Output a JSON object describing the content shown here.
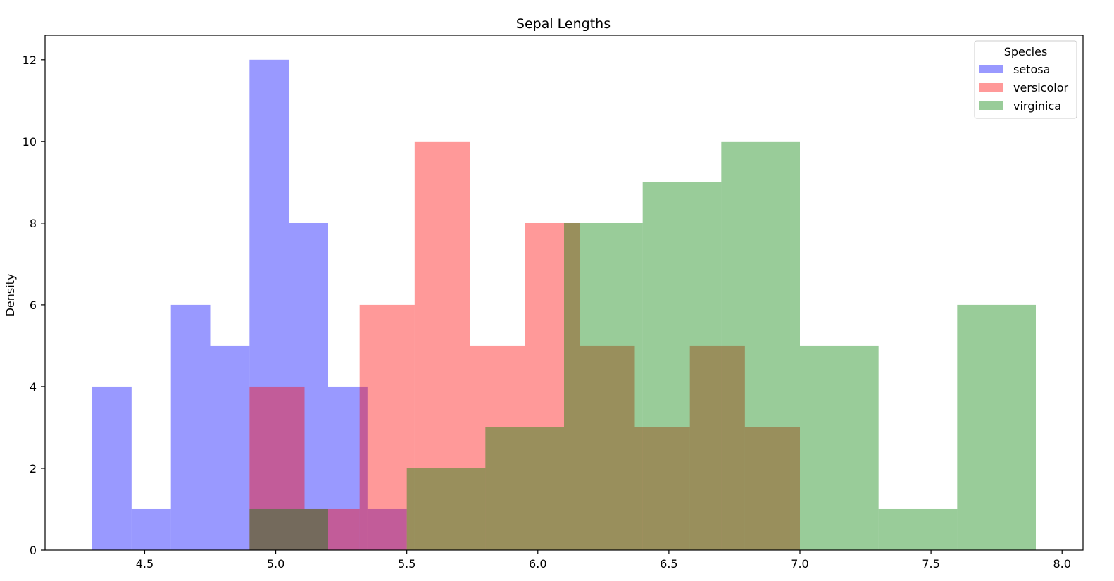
{
  "chart_data": {
    "type": "histogram",
    "title": "Sepal Lengths",
    "xlabel": "",
    "ylabel": "Density",
    "xlim": [
      4.12,
      8.08
    ],
    "ylim": [
      0,
      12.6
    ],
    "xticks": [
      4.5,
      5.0,
      5.5,
      6.0,
      6.5,
      7.0,
      7.5,
      8.0
    ],
    "xtick_labels": [
      "4.5",
      "5.0",
      "5.5",
      "6.0",
      "6.5",
      "7.0",
      "7.5",
      "8.0"
    ],
    "yticks": [
      0,
      2,
      4,
      6,
      8,
      10,
      12
    ],
    "ytick_labels": [
      "0",
      "2",
      "4",
      "6",
      "8",
      "10",
      "12"
    ],
    "grid": false,
    "legend": {
      "title": "Species",
      "position": "top-right"
    },
    "series": [
      {
        "name": "setosa",
        "color": "#0000ff",
        "opacity": 0.4,
        "bin_edges": [
          4.3,
          4.45,
          4.6,
          4.75,
          4.9,
          5.05,
          5.2,
          5.35,
          5.5,
          5.65,
          5.8
        ],
        "counts": [
          4,
          1,
          6,
          5,
          12,
          8,
          4,
          1,
          0,
          0
        ]
      },
      {
        "name": "versicolor",
        "color": "#ff0000",
        "opacity": 0.4,
        "bin_edges": [
          4.9,
          5.11,
          5.32,
          5.53,
          5.74,
          5.95,
          6.16,
          6.37,
          6.58,
          6.79,
          7.0
        ],
        "counts": [
          4,
          1,
          6,
          10,
          5,
          8,
          5,
          3,
          5,
          3
        ]
      },
      {
        "name": "virginica",
        "color": "#008000",
        "opacity": 0.4,
        "bin_edges": [
          4.9,
          5.2,
          5.5,
          5.8,
          6.1,
          6.4,
          6.7,
          7.0,
          7.3,
          7.6,
          7.9
        ],
        "counts": [
          1,
          0,
          2,
          3,
          8,
          9,
          10,
          5,
          1,
          6
        ]
      }
    ]
  }
}
